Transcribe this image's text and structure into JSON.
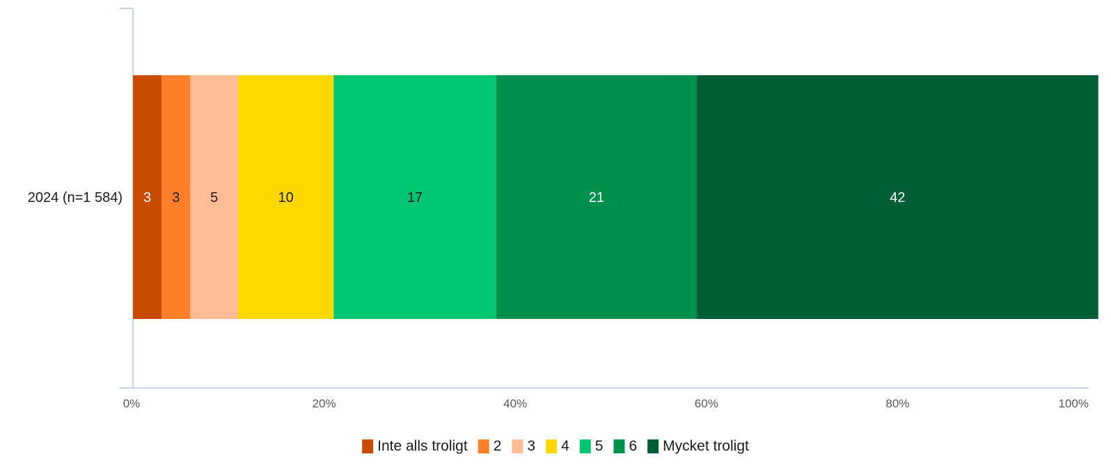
{
  "chart_data": {
    "type": "bar",
    "orientation": "horizontal",
    "stacked": "percent",
    "categories": [
      "2024 (n=1 584)"
    ],
    "series": [
      {
        "name": "Inte alls troligt",
        "values": [
          3
        ],
        "label": "3",
        "color": "#C84B00"
      },
      {
        "name": "2",
        "values": [
          3
        ],
        "label": "3",
        "color": "#FF7F2A"
      },
      {
        "name": "3",
        "values": [
          5
        ],
        "label": "5",
        "color": "#FFBC96"
      },
      {
        "name": "4",
        "values": [
          10
        ],
        "label": "10",
        "color": "#FFD700"
      },
      {
        "name": "5",
        "values": [
          17
        ],
        "label": "17",
        "color": "#00C672"
      },
      {
        "name": "6",
        "values": [
          21
        ],
        "label": "21",
        "color": "#00904E"
      },
      {
        "name": "Mycket troligt",
        "values": [
          42
        ],
        "label": "42",
        "color": "#005E35"
      }
    ],
    "label_colors": [
      "#ffffff",
      "#1a1a1a",
      "#1a1a1a",
      "#1a1a1a",
      "#1a1a1a",
      "#ffffff",
      "#ffffff"
    ],
    "xlim": [
      0,
      100
    ],
    "x_ticks": [
      "0%",
      "20%",
      "40%",
      "60%",
      "80%",
      "100%"
    ],
    "title": "",
    "xlabel": "",
    "ylabel": "",
    "grid": false,
    "legend_position": "bottom",
    "axis_color": "#C9D3E3"
  }
}
